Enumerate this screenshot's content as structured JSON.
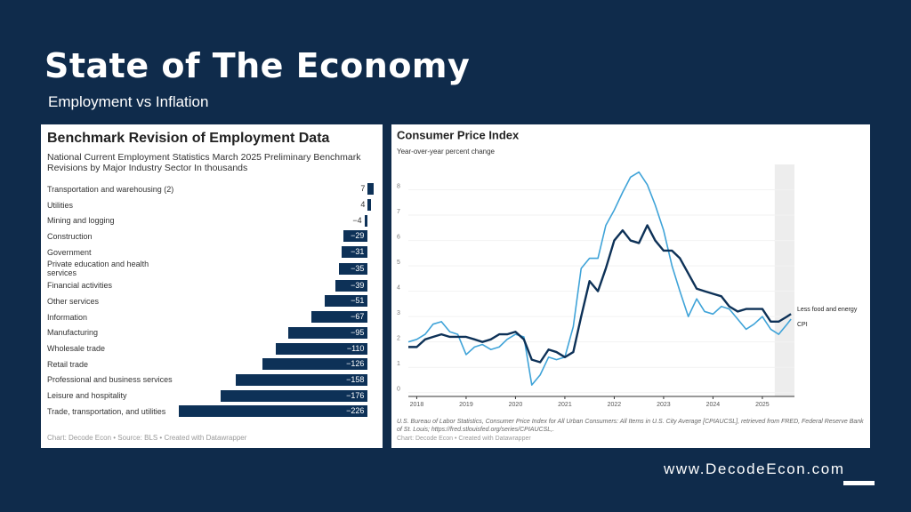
{
  "header": {
    "title": "State of The Economy",
    "subtitle": "Employment vs Inflation"
  },
  "website": "www.DecodeEcon.com",
  "chart_data": [
    {
      "type": "bar",
      "orientation": "horizontal",
      "title": "Benchmark Revision of Employment Data",
      "subtitle": "National Current Employment Statistics March 2025 Preliminary Benchmark Revisions by Major Industry Sector In thousands",
      "categories": [
        "Transportation and warehousing (2)",
        "Utilities",
        "Mining and logging",
        "Construction",
        "Government",
        "Private education and health services",
        "Financial activities",
        "Other services",
        "Information",
        "Manufacturing",
        "Wholesale trade",
        "Retail trade",
        "Professional and business services",
        "Leisure and hospitality",
        "Trade, transportation, and utilities"
      ],
      "values": [
        7,
        4,
        -4,
        -29,
        -31,
        -35,
        -39,
        -51,
        -67,
        -95,
        -110,
        -126,
        -158,
        -176,
        -226
      ],
      "value_labels": [
        "7",
        "4",
        "−4",
        "−29",
        "−31",
        "−35",
        "−39",
        "−51",
        "−67",
        "−95",
        "−110",
        "−126",
        "−158",
        "−176",
        "−226"
      ],
      "color": "#0d3157",
      "source": "Chart: Decode Econ • Source: BLS • Created with Datawrapper"
    },
    {
      "type": "line",
      "title": "Consumer Price Index",
      "ylabel": "Year-over-year percent change",
      "x": [
        2017.83,
        2018,
        2018.17,
        2018.33,
        2018.5,
        2018.67,
        2018.83,
        2019,
        2019.17,
        2019.33,
        2019.5,
        2019.67,
        2019.83,
        2020,
        2020.17,
        2020.33,
        2020.5,
        2020.67,
        2020.83,
        2021,
        2021.17,
        2021.33,
        2021.5,
        2021.67,
        2021.83,
        2022,
        2022.17,
        2022.33,
        2022.5,
        2022.67,
        2022.83,
        2023,
        2023.17,
        2023.33,
        2023.5,
        2023.67,
        2023.83,
        2024,
        2024.17,
        2024.33,
        2024.5,
        2024.67,
        2024.83,
        2025,
        2025.17,
        2025.33,
        2025.5,
        2025.58
      ],
      "series": [
        {
          "name": "Less food and energy",
          "color": "#0d3157",
          "values": [
            1.8,
            1.8,
            2.1,
            2.2,
            2.3,
            2.2,
            2.2,
            2.2,
            2.1,
            2.0,
            2.1,
            2.3,
            2.3,
            2.4,
            2.1,
            1.3,
            1.2,
            1.7,
            1.6,
            1.4,
            1.6,
            3.0,
            4.4,
            4.0,
            4.9,
            6.0,
            6.4,
            6.0,
            5.9,
            6.6,
            6.0,
            5.6,
            5.6,
            5.3,
            4.7,
            4.1,
            4.0,
            3.9,
            3.8,
            3.4,
            3.2,
            3.3,
            3.3,
            3.3,
            2.8,
            2.8,
            3.0,
            3.1
          ]
        },
        {
          "name": "CPI",
          "color": "#3fa3d8",
          "values": [
            2.0,
            2.1,
            2.3,
            2.7,
            2.8,
            2.4,
            2.3,
            1.5,
            1.8,
            1.9,
            1.7,
            1.8,
            2.1,
            2.3,
            2.2,
            0.3,
            0.7,
            1.4,
            1.3,
            1.4,
            2.6,
            4.9,
            5.3,
            5.3,
            6.6,
            7.2,
            7.9,
            8.5,
            8.7,
            8.2,
            7.4,
            6.4,
            5.0,
            4.0,
            3.0,
            3.7,
            3.2,
            3.1,
            3.4,
            3.3,
            2.9,
            2.5,
            2.7,
            3.0,
            2.5,
            2.3,
            2.7,
            2.9
          ]
        }
      ],
      "xlim": [
        2017.83,
        2025.65
      ],
      "ylim": [
        -0.15,
        9
      ],
      "xticks": [
        2018,
        2019,
        2020,
        2021,
        2022,
        2023,
        2024,
        2025
      ],
      "yticks": [
        0,
        1,
        2,
        3,
        4,
        5,
        6,
        7,
        8
      ],
      "highlight_x": [
        2025.25,
        2025.65
      ],
      "source": "U.S. Bureau of Labor Statistics, Consumer Price Index for All Urban Consumers: All Items in U.S. City Average [CPIAUCSL], retrieved from FRED, Federal Reserve Bank of St. Louis; https://fred.stlouisfed.org/series/CPIAUCSL,.",
      "credit": "Chart: Decode Econ • Created with Datawrapper"
    }
  ]
}
